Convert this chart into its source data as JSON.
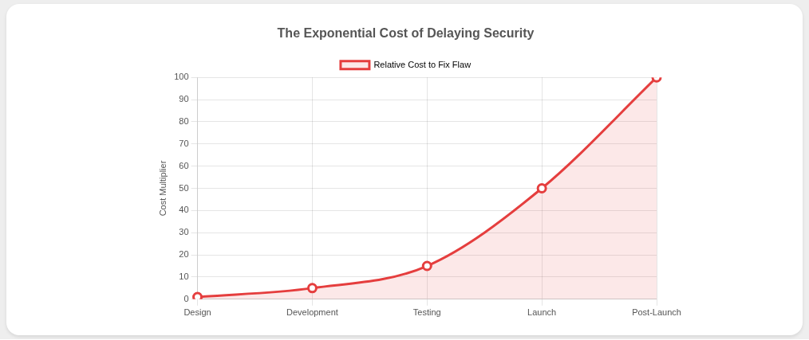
{
  "chart_data": {
    "type": "area",
    "title": "The Exponential Cost of Delaying Security",
    "ylabel": "Cost Multiplier",
    "categories": [
      "Design",
      "Development",
      "Testing",
      "Launch",
      "Post-Launch"
    ],
    "series": [
      {
        "name": "Relative Cost to Fix Flaw",
        "color": "#e53e3e",
        "values": [
          1,
          5,
          15,
          50,
          100
        ]
      }
    ],
    "ylim": [
      0,
      100
    ],
    "yticks": [
      0,
      10,
      20,
      30,
      40,
      50,
      60,
      70,
      80,
      90,
      100
    ],
    "grid": true,
    "legend": "top",
    "marker": "circle"
  }
}
